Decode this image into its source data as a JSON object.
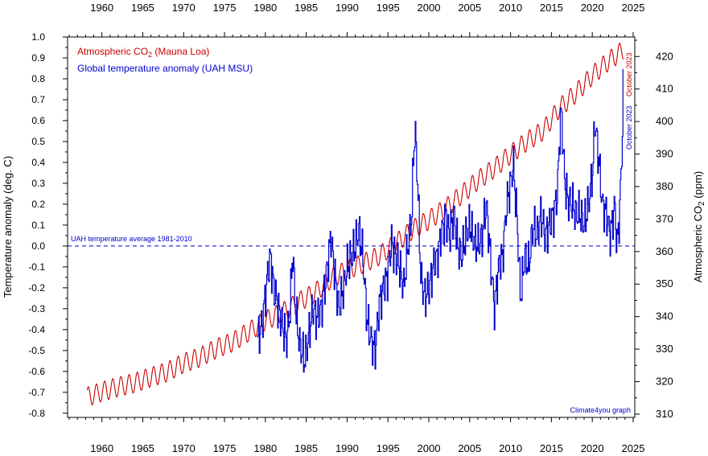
{
  "chart_data": {
    "type": "line",
    "title": "",
    "credit": "Climate4you graph",
    "ylabel_left": "Temperature anomaly (deg. C)",
    "ylabel_right": "Atmospheric CO",
    "ylabel_right_sub": "2",
    "ylabel_right_unit": " (ppm)",
    "xlim": [
      1955.8,
      2025.2
    ],
    "ylim_left": [
      -0.82,
      1.0
    ],
    "ylim_right": [
      309,
      426
    ],
    "x_ticks": [
      1960,
      1965,
      1970,
      1975,
      1980,
      1985,
      1990,
      1995,
      2000,
      2005,
      2010,
      2015,
      2020,
      2025
    ],
    "y_ticks_left": [
      1.0,
      0.9,
      0.8,
      0.7,
      0.6,
      0.5,
      0.4,
      0.3,
      0.2,
      0.1,
      0.0,
      -0.1,
      -0.2,
      -0.3,
      -0.4,
      -0.5,
      -0.6,
      -0.7,
      -0.8
    ],
    "y_tick_labels_left": [
      "1.0",
      "0.9",
      "0.8",
      "0.7",
      "0.6",
      "0.5",
      "0.4",
      "0.3",
      "0.2",
      "0.1",
      "0.0",
      "-0.1",
      "-0.2",
      "-0.3",
      "-0.4",
      "-0.5",
      "-0.6",
      "-0.7",
      "-0.8"
    ],
    "y_ticks_right": [
      310,
      320,
      330,
      340,
      350,
      360,
      370,
      380,
      390,
      400,
      410,
      420
    ],
    "reference_line": {
      "y": 0.0,
      "label": "UAH temperature average 1981-2010",
      "color": "#0000cc"
    },
    "legend": [
      {
        "text": "Atmospheric CO",
        "sub": "2",
        "suffix": " (Mauna Loa)",
        "color": "#cc0000"
      },
      {
        "text": "Global temperature anomaly (UAH MSU)",
        "sub": "",
        "suffix": "",
        "color": "#0000cc"
      }
    ],
    "annotations": [
      {
        "text": "October 2023",
        "series": "co2",
        "color": "#cc0000"
      },
      {
        "text": "October 2023",
        "series": "temperature",
        "color": "#0000cc"
      }
    ],
    "series": [
      {
        "name": "Atmospheric CO2 (Mauna Loa)",
        "axis": "right",
        "color": "#cc0000",
        "x": [
          1958.2,
          1960,
          1962,
          1964,
          1966,
          1968,
          1970,
          1972,
          1974,
          1976,
          1978,
          1980,
          1982,
          1984,
          1986,
          1988,
          1990,
          1992,
          1994,
          1996,
          1998,
          2000,
          2002,
          2004,
          2006,
          2008,
          2010,
          2012,
          2014,
          2016,
          2018,
          2020,
          2022,
          2023.8
        ],
        "values": [
          315.3,
          316.9,
          318.4,
          319.6,
          321.4,
          323.0,
          325.7,
          327.5,
          330.2,
          332.2,
          335.4,
          338.8,
          341.1,
          344.4,
          347.2,
          351.5,
          354.4,
          356.4,
          358.8,
          362.6,
          366.7,
          369.7,
          373.2,
          377.5,
          381.9,
          385.6,
          389.9,
          393.9,
          397.2,
          404.2,
          408.7,
          414.2,
          418.6,
          422.0
        ],
        "seasonal_amplitude": 3.0
      },
      {
        "name": "Global temperature anomaly (UAH MSU)",
        "axis": "left",
        "color": "#0000cc",
        "x": [
          1979.0,
          1979.6,
          1980.2,
          1980.6,
          1981.0,
          1981.5,
          1982.0,
          1982.6,
          1983.0,
          1983.3,
          1983.7,
          1984.2,
          1984.8,
          1985.3,
          1985.8,
          1986.3,
          1986.8,
          1987.3,
          1987.7,
          1988.0,
          1988.5,
          1989.0,
          1989.5,
          1990.0,
          1990.5,
          1991.0,
          1991.4,
          1991.9,
          1992.4,
          1992.9,
          1993.4,
          1993.9,
          1994.4,
          1994.9,
          1995.4,
          1995.9,
          1996.4,
          1996.9,
          1997.4,
          1997.9,
          1998.1,
          1998.3,
          1998.6,
          1999.0,
          1999.5,
          2000.0,
          2000.5,
          2001.0,
          2001.5,
          2002.0,
          2002.5,
          2003.0,
          2003.5,
          2004.0,
          2004.5,
          2005.0,
          2005.5,
          2006.0,
          2006.5,
          2007.0,
          2007.5,
          2008.0,
          2008.5,
          2009.0,
          2009.5,
          2010.0,
          2010.3,
          2010.8,
          2011.2,
          2011.7,
          2012.2,
          2012.7,
          2013.2,
          2013.7,
          2014.2,
          2014.7,
          2015.2,
          2015.7,
          2016.0,
          2016.2,
          2016.6,
          2017.0,
          2017.5,
          2018.0,
          2018.5,
          2019.0,
          2019.5,
          2020.0,
          2020.3,
          2020.8,
          2021.2,
          2021.7,
          2022.2,
          2022.7,
          2023.0,
          2023.3,
          2023.6,
          2023.8
        ],
        "values": [
          -0.45,
          -0.37,
          -0.15,
          -0.05,
          -0.2,
          -0.28,
          -0.38,
          -0.45,
          -0.3,
          -0.02,
          -0.32,
          -0.48,
          -0.55,
          -0.42,
          -0.3,
          -0.35,
          -0.3,
          -0.18,
          -0.05,
          0.05,
          -0.15,
          -0.3,
          -0.2,
          -0.1,
          -0.05,
          0.0,
          0.08,
          -0.05,
          -0.35,
          -0.45,
          -0.5,
          -0.28,
          -0.2,
          -0.15,
          0.02,
          -0.05,
          -0.1,
          -0.2,
          0.0,
          0.15,
          0.45,
          0.55,
          0.3,
          -0.15,
          -0.25,
          -0.2,
          -0.1,
          -0.05,
          0.05,
          0.15,
          0.05,
          0.15,
          0.0,
          -0.05,
          0.05,
          0.1,
          0.02,
          0.0,
          0.05,
          0.2,
          -0.05,
          -0.3,
          -0.1,
          -0.05,
          0.2,
          0.3,
          0.4,
          0.1,
          -0.25,
          -0.05,
          -0.1,
          0.1,
          0.05,
          0.15,
          0.05,
          0.1,
          0.15,
          0.25,
          0.55,
          0.65,
          0.3,
          0.22,
          0.2,
          0.15,
          0.15,
          0.1,
          0.2,
          0.35,
          0.6,
          0.4,
          0.2,
          0.15,
          0.05,
          0.2,
          0.0,
          0.15,
          0.45,
          0.85
        ]
      }
    ],
    "colors": {
      "co2": "#cc0000",
      "temperature": "#0000cc",
      "axes": "#000000"
    },
    "grid": false
  }
}
